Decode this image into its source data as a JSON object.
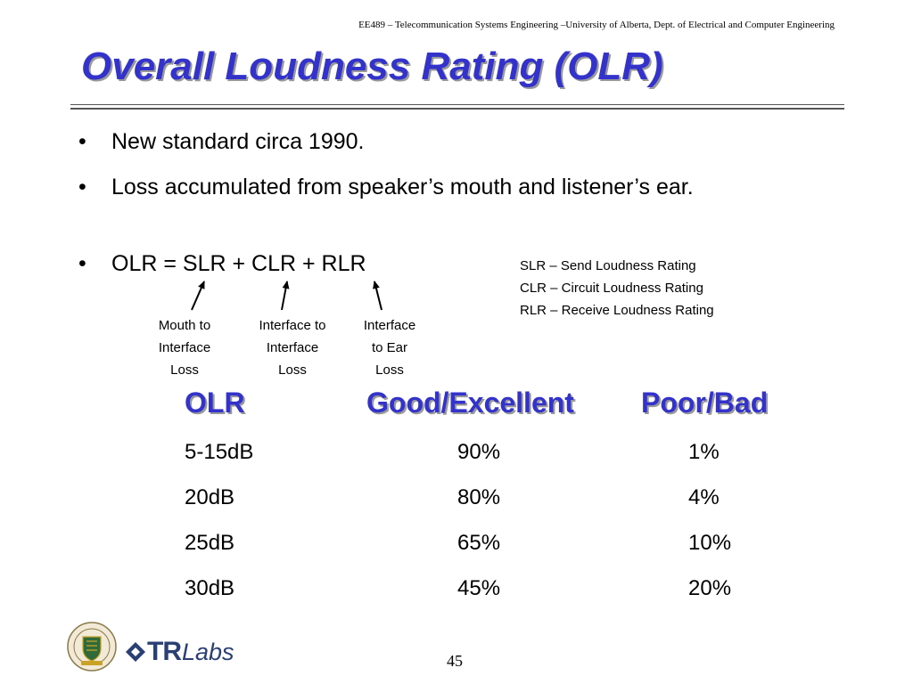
{
  "header": {
    "course": "EE489 – Telecommunication Systems Engineering –University of Alberta, Dept. of Electrical and Computer Engineering"
  },
  "title": "Overall Loudness Rating (OLR)",
  "bullets": [
    {
      "symbol": "•",
      "text": "New standard circa 1990."
    },
    {
      "symbol": "•",
      "text": "Loss accumulated from speaker’s mouth and listener’s ear."
    },
    {
      "symbol": "•",
      "text": "OLR = SLR + CLR + RLR"
    }
  ],
  "definitions": [
    "SLR – Send Loudness Rating",
    "CLR – Circuit Loudness Rating",
    "RLR – Receive Loudness Rating"
  ],
  "loss_labels": [
    [
      "Mouth to",
      "Interface",
      "Loss"
    ],
    [
      "Interface to",
      "Interface",
      "Loss"
    ],
    [
      "Interface",
      "to Ear",
      "Loss"
    ]
  ],
  "table": {
    "headers": [
      "OLR",
      "Good/Excellent",
      "Poor/Bad"
    ],
    "rows": [
      [
        "5-15dB",
        "90%",
        "1%"
      ],
      [
        "20dB",
        "80%",
        "4%"
      ],
      [
        "25dB",
        "65%",
        "10%"
      ],
      [
        "30dB",
        "45%",
        "20%"
      ]
    ],
    "header_color": "#3333cc"
  },
  "footer": {
    "logos": [
      "university-of-alberta-crest",
      "trlabs-logo"
    ],
    "trlabs_tr": "TR",
    "trlabs_labs": "Labs",
    "page_number": "45"
  }
}
